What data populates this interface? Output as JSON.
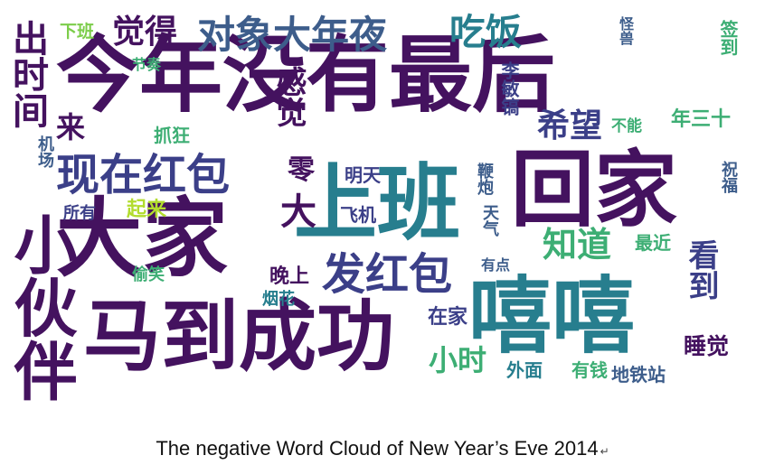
{
  "caption": {
    "title": "The negative Word Cloud of New Year’s Eve 2014",
    "paragraph_mark": "↵"
  },
  "palette": {
    "purple": "#44125f",
    "indigo": "#3b3f88",
    "blue": "#3d5d8b",
    "teal": "#277e8e",
    "green": "#3dae74",
    "lime": "#7ccd4a",
    "yellow": "#b2dc2e"
  },
  "words": [
    {
      "text": "今年没有最后",
      "color": "#44125f"
    },
    {
      "text": "回家",
      "color": "#44125f"
    },
    {
      "text": "上班",
      "color": "#277e8e"
    },
    {
      "text": "大家",
      "color": "#44125f"
    },
    {
      "text": "嘻嘻",
      "color": "#277e8e"
    },
    {
      "text": "马到成功",
      "color": "#44125f"
    },
    {
      "text": "现在红包",
      "color": "#3b3f88"
    },
    {
      "text": "对象大年夜",
      "color": "#3d5d8b"
    },
    {
      "text": "吃饭",
      "color": "#277e8e"
    },
    {
      "text": "觉得",
      "color": "#44125f"
    },
    {
      "text": "下班",
      "color": "#7ccd4a"
    },
    {
      "text": "发红包",
      "color": "#3b3f88"
    },
    {
      "text": "知道",
      "color": "#3dae74"
    },
    {
      "text": "小伙伴",
      "color": "#44125f"
    },
    {
      "text": "出时间",
      "color": "#44125f"
    },
    {
      "text": "希望",
      "color": "#3b3f88"
    },
    {
      "text": "小时",
      "color": "#3dae74"
    },
    {
      "text": "看到",
      "color": "#3b3f88"
    },
    {
      "text": "睡觉",
      "color": "#44125f"
    },
    {
      "text": "感觉",
      "color": "#44125f"
    },
    {
      "text": "来",
      "color": "#44125f"
    },
    {
      "text": "零",
      "color": "#44125f"
    },
    {
      "text": "大",
      "color": "#44125f"
    },
    {
      "text": "明天",
      "color": "#3b3f88"
    },
    {
      "text": "飞机",
      "color": "#3b3f88"
    },
    {
      "text": "李敏镐",
      "color": "#3b3f88"
    },
    {
      "text": "不能",
      "color": "#3dae74"
    },
    {
      "text": "年三十",
      "color": "#3dae74"
    },
    {
      "text": "节奏",
      "color": "#3dae74"
    },
    {
      "text": "抓狂",
      "color": "#3dae74"
    },
    {
      "text": "机场",
      "color": "#3d5d8b"
    },
    {
      "text": "所有",
      "color": "#3b3f88"
    },
    {
      "text": "起来",
      "color": "#b2dc2e"
    },
    {
      "text": "偷笑",
      "color": "#3dae74"
    },
    {
      "text": "晚上",
      "color": "#44125f"
    },
    {
      "text": "烟花",
      "color": "#277e8e"
    },
    {
      "text": "在家",
      "color": "#3b3f88"
    },
    {
      "text": "外面",
      "color": "#277e8e"
    },
    {
      "text": "有钱",
      "color": "#3dae74"
    },
    {
      "text": "地铁站",
      "color": "#3d5d8b"
    },
    {
      "text": "最近",
      "color": "#3dae74"
    },
    {
      "text": "有点",
      "color": "#3d5d8b"
    },
    {
      "text": "天气",
      "color": "#3d5d8b"
    },
    {
      "text": "鞭炮",
      "color": "#3d5d8b"
    },
    {
      "text": "怪兽",
      "color": "#3d5d8b"
    },
    {
      "text": "签到",
      "color": "#3dae74"
    },
    {
      "text": "祝福",
      "color": "#3d5d8b"
    }
  ]
}
